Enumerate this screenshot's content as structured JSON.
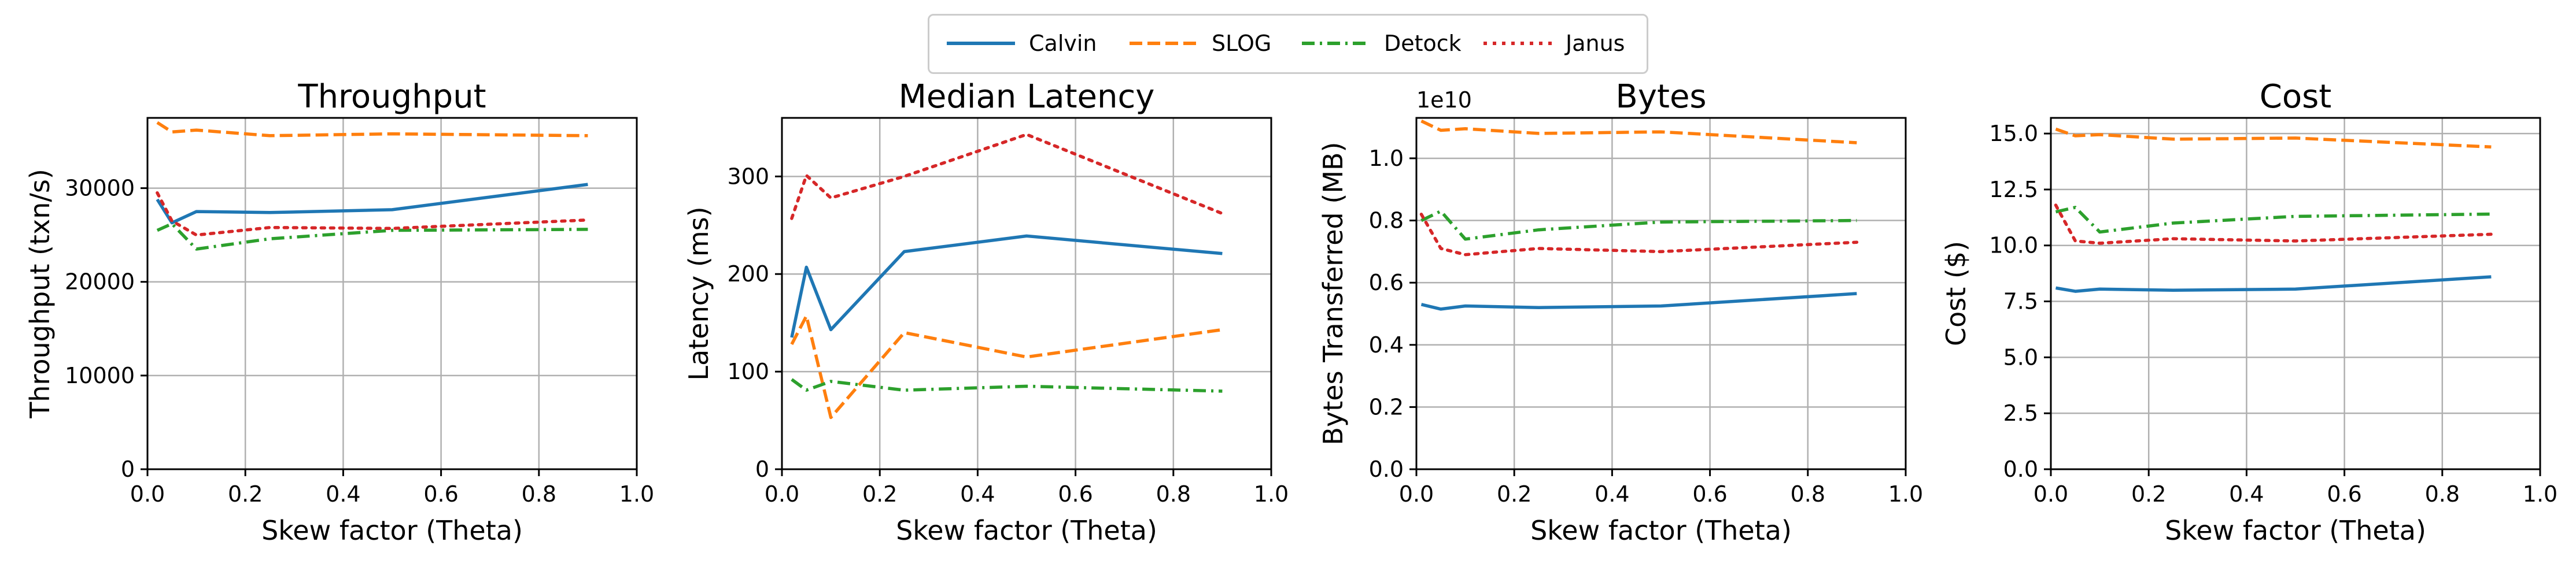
{
  "colors": {
    "Calvin": "#1f77b4",
    "SLOG": "#ff7f0e",
    "Detock": "#2ca02c",
    "Janus": "#d62728",
    "grid": "#b0b0b0"
  },
  "legend": {
    "placement": "top-center",
    "items": [
      {
        "label": "Calvin",
        "style": "solid",
        "color": "#1f77b4"
      },
      {
        "label": "SLOG",
        "style": "dashed",
        "color": "#ff7f0e"
      },
      {
        "label": "Detock",
        "style": "dashdot",
        "color": "#2ca02c"
      },
      {
        "label": "Janus",
        "style": "dotted",
        "color": "#d62728"
      }
    ]
  },
  "chart_data": [
    {
      "type": "line",
      "title": "Throughput",
      "xlabel": "Skew factor (Theta)",
      "ylabel": "Throughput (txn/s)",
      "offset_label": "",
      "xlim": [
        0,
        1.0
      ],
      "ylim": [
        0,
        37500
      ],
      "xticks": [
        0,
        0.2,
        0.4,
        0.6,
        0.8,
        1.0
      ],
      "xtick_labels": [
        "0.0",
        "0.2",
        "0.4",
        "0.6",
        "0.8",
        "1.0"
      ],
      "yticks": [
        0,
        10000,
        20000,
        30000
      ],
      "ytick_labels": [
        "0",
        "10000",
        "20000",
        "30000"
      ],
      "grid": true,
      "x": [
        0.02,
        0.05,
        0.1,
        0.25,
        0.5,
        0.9
      ],
      "series": [
        {
          "name": "Calvin",
          "values": [
            28800,
            26300,
            27500,
            27400,
            27700,
            30400
          ]
        },
        {
          "name": "SLOG",
          "values": [
            37000,
            36000,
            36200,
            35600,
            35800,
            35600
          ]
        },
        {
          "name": "Detock",
          "values": [
            25500,
            26200,
            23500,
            24600,
            25500,
            25600
          ]
        },
        {
          "name": "Janus",
          "values": [
            29500,
            26500,
            25000,
            25800,
            25700,
            26600
          ]
        }
      ]
    },
    {
      "type": "line",
      "title": "Median Latency",
      "xlabel": "Skew factor (Theta)",
      "ylabel": "Latency (ms)",
      "offset_label": "",
      "xlim": [
        0,
        1.0
      ],
      "ylim": [
        0,
        360
      ],
      "xticks": [
        0,
        0.2,
        0.4,
        0.6,
        0.8,
        1.0
      ],
      "xtick_labels": [
        "0.0",
        "0.2",
        "0.4",
        "0.6",
        "0.8",
        "1.0"
      ],
      "yticks": [
        0,
        100,
        200,
        300
      ],
      "ytick_labels": [
        "0",
        "100",
        "200",
        "300"
      ],
      "grid": true,
      "x": [
        0.02,
        0.05,
        0.1,
        0.25,
        0.5,
        0.9
      ],
      "series": [
        {
          "name": "Calvin",
          "values": [
            135,
            207,
            143,
            223,
            239,
            221
          ]
        },
        {
          "name": "SLOG",
          "values": [
            128,
            157,
            53,
            140,
            115,
            143
          ]
        },
        {
          "name": "Detock",
          "values": [
            92,
            81,
            90,
            81,
            85,
            80
          ]
        },
        {
          "name": "Janus",
          "values": [
            257,
            301,
            278,
            300,
            343,
            262
          ]
        }
      ]
    },
    {
      "type": "line",
      "title": "Bytes",
      "xlabel": "Skew factor (Theta)",
      "ylabel": "Bytes Transferred (MB)",
      "offset_label": "1e10",
      "xlim": [
        0,
        1.0
      ],
      "ylim": [
        0,
        1.13
      ],
      "xticks": [
        0,
        0.2,
        0.4,
        0.6,
        0.8,
        1.0
      ],
      "xtick_labels": [
        "0.0",
        "0.2",
        "0.4",
        "0.6",
        "0.8",
        "1.0"
      ],
      "yticks": [
        0,
        0.2,
        0.4,
        0.6,
        0.8,
        1.0
      ],
      "ytick_labels": [
        "0.0",
        "0.2",
        "0.4",
        "0.6",
        "0.8",
        "1.0"
      ],
      "grid": true,
      "x": [
        0.01,
        0.05,
        0.1,
        0.25,
        0.5,
        0.9
      ],
      "series": [
        {
          "name": "Calvin",
          "values": [
            0.53,
            0.515,
            0.525,
            0.52,
            0.525,
            0.565
          ]
        },
        {
          "name": "SLOG",
          "values": [
            1.12,
            1.09,
            1.095,
            1.08,
            1.085,
            1.05
          ]
        },
        {
          "name": "Detock",
          "values": [
            0.8,
            0.83,
            0.74,
            0.77,
            0.795,
            0.8
          ]
        },
        {
          "name": "Janus",
          "values": [
            0.82,
            0.71,
            0.69,
            0.71,
            0.7,
            0.73
          ]
        }
      ]
    },
    {
      "type": "line",
      "title": "Cost",
      "xlabel": "Skew factor (Theta)",
      "ylabel": "Cost ($)",
      "offset_label": "",
      "xlim": [
        0,
        1.0
      ],
      "ylim": [
        0,
        15.7
      ],
      "xticks": [
        0,
        0.2,
        0.4,
        0.6,
        0.8,
        1.0
      ],
      "xtick_labels": [
        "0.0",
        "0.2",
        "0.4",
        "0.6",
        "0.8",
        "1.0"
      ],
      "yticks": [
        0,
        2.5,
        5.0,
        7.5,
        10.0,
        12.5,
        15.0
      ],
      "ytick_labels": [
        "0.0",
        "2.5",
        "5.0",
        "7.5",
        "10.0",
        "12.5",
        "15.0"
      ],
      "grid": true,
      "x": [
        0.01,
        0.05,
        0.1,
        0.25,
        0.5,
        0.9
      ],
      "series": [
        {
          "name": "Calvin",
          "values": [
            8.1,
            7.95,
            8.05,
            8.0,
            8.05,
            8.6
          ]
        },
        {
          "name": "SLOG",
          "values": [
            15.2,
            14.9,
            14.95,
            14.75,
            14.8,
            14.4
          ]
        },
        {
          "name": "Detock",
          "values": [
            11.5,
            11.7,
            10.6,
            11.0,
            11.3,
            11.4
          ]
        },
        {
          "name": "Janus",
          "values": [
            11.8,
            10.2,
            10.1,
            10.3,
            10.2,
            10.5
          ]
        }
      ]
    }
  ]
}
